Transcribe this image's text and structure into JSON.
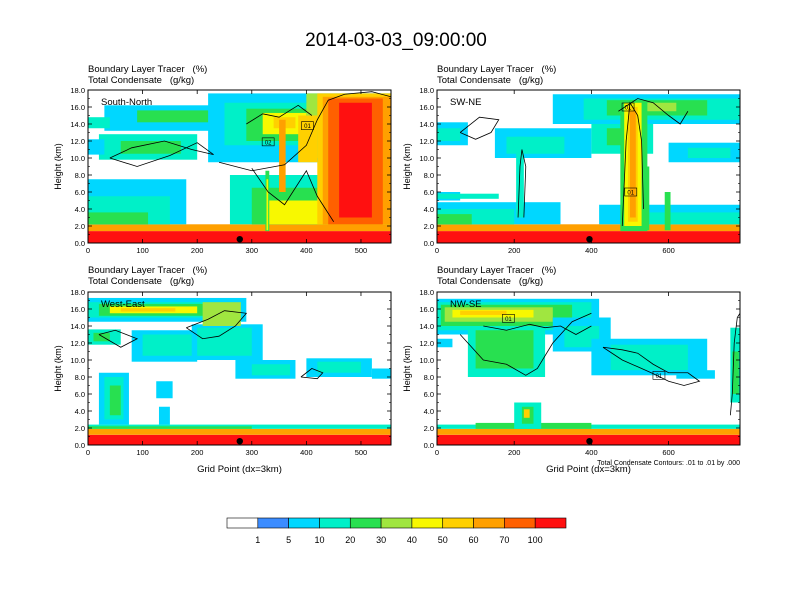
{
  "page": {
    "title": "2014-03-03_09:00:00",
    "x_axis_label": "Grid Point (dx=3km)",
    "contour_note": "Total Condensate Contours: .01 to .01 by .000"
  },
  "colorbar": {
    "labels": [
      "1",
      "5",
      "10",
      "20",
      "30",
      "40",
      "50",
      "60",
      "70",
      "100"
    ],
    "colors": [
      "#ffffff",
      "#3b8cff",
      "#00d7ff",
      "#00f0c8",
      "#28e050",
      "#a0e640",
      "#f8f800",
      "#ffd000",
      "#ffa000",
      "#ff6000",
      "#ff1010"
    ]
  },
  "chart_data": [
    {
      "type": "heatmap",
      "tracer_label": "Boundary Layer Tracer   (%)",
      "condensate_label": "Total Condensate   (g/kg)",
      "panel_name": "South-North",
      "ylabel": "Height (km)",
      "xlabel": "",
      "xlim": [
        0,
        555
      ],
      "ylim": [
        0,
        18
      ],
      "x_ticks": [
        0,
        100,
        200,
        300,
        400,
        500
      ],
      "y_ticks": [
        0.0,
        2.0,
        4.0,
        6.0,
        8.0,
        10.0,
        12.0,
        14.0,
        16.0,
        18.0
      ],
      "marker_x": 278,
      "contour_labels": [
        {
          "x": 330,
          "y": 11.9,
          "text": "02"
        },
        {
          "x": 402,
          "y": 13.8,
          "text": "01"
        }
      ]
    },
    {
      "type": "heatmap",
      "tracer_label": "Boundary Layer Tracer   (%)",
      "condensate_label": "Total Condensate   (g/kg)",
      "panel_name": "SW-NE",
      "ylabel": "Height (km)",
      "xlabel": "",
      "xlim": [
        0,
        785
      ],
      "ylim": [
        0,
        18
      ],
      "x_ticks": [
        0,
        200,
        400,
        600
      ],
      "y_ticks": [
        0.0,
        2.0,
        4.0,
        6.0,
        8.0,
        10.0,
        12.0,
        14.0,
        16.0,
        18.0
      ],
      "marker_x": 395,
      "contour_labels": [
        {
          "x": 495,
          "y": 16.0,
          "text": "01"
        },
        {
          "x": 502,
          "y": 6.0,
          "text": "01"
        }
      ]
    },
    {
      "type": "heatmap",
      "tracer_label": "Boundary Layer Tracer   (%)",
      "condensate_label": "Total Condensate   (g/kg)",
      "panel_name": "West-East",
      "ylabel": "Height (km)",
      "xlabel": "Grid Point (dx=3km)",
      "xlim": [
        0,
        555
      ],
      "ylim": [
        0,
        18
      ],
      "x_ticks": [
        0,
        100,
        200,
        300,
        400,
        500
      ],
      "y_ticks": [
        0.0,
        2.0,
        4.0,
        6.0,
        8.0,
        10.0,
        12.0,
        14.0,
        16.0,
        18.0
      ],
      "marker_x": 278,
      "contour_labels": []
    },
    {
      "type": "heatmap",
      "tracer_label": "Boundary Layer Tracer   (%)",
      "condensate_label": "Total Condensate   (g/kg)",
      "panel_name": "NW-SE",
      "ylabel": "Height (km)",
      "xlabel": "Grid Point (dx=3km)",
      "xlim": [
        0,
        785
      ],
      "ylim": [
        0,
        18
      ],
      "x_ticks": [
        0,
        200,
        400,
        600
      ],
      "y_ticks": [
        0.0,
        2.0,
        4.0,
        6.0,
        8.0,
        10.0,
        12.0,
        14.0,
        16.0,
        18.0
      ],
      "marker_x": 395,
      "contour_labels": [
        {
          "x": 185,
          "y": 14.9,
          "text": "01"
        },
        {
          "x": 575,
          "y": 8.2,
          "text": "01"
        }
      ]
    }
  ]
}
